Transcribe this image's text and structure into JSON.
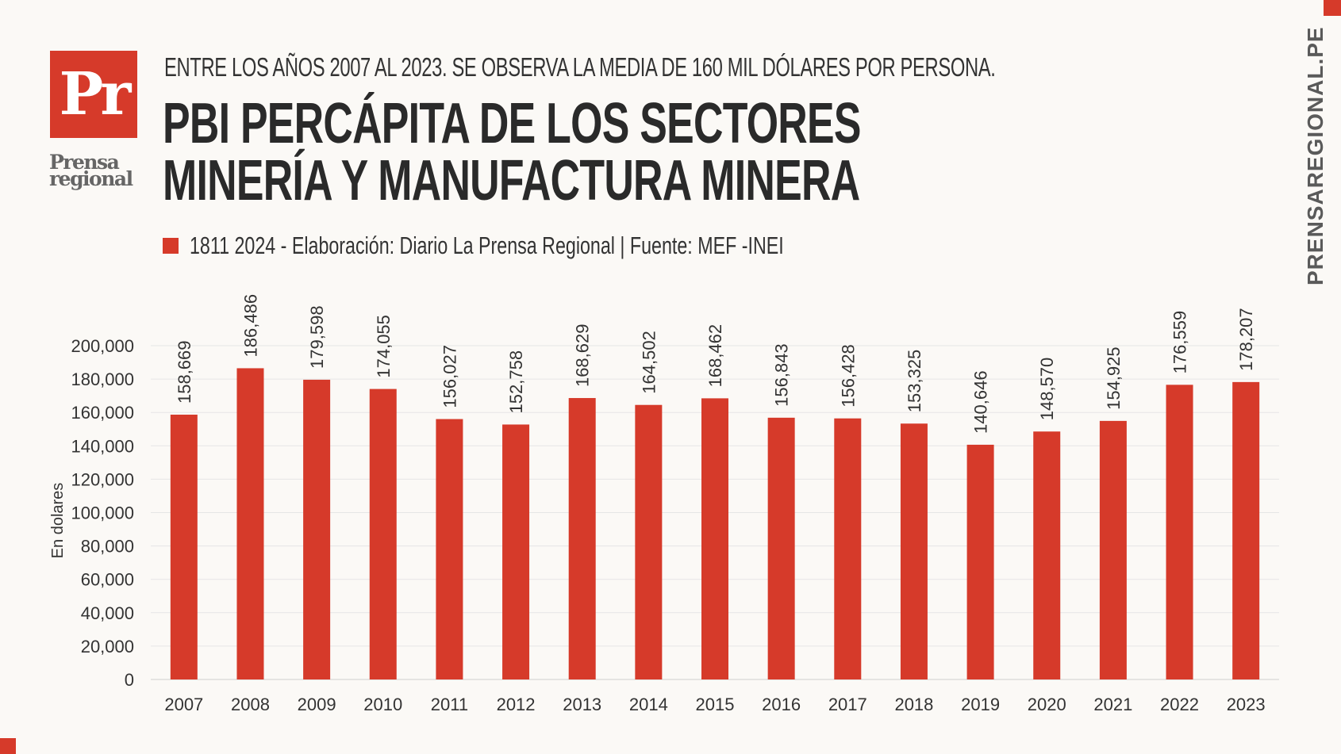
{
  "brand": {
    "logo_text": "Pr",
    "logo_word": "Prensa regional",
    "vertical_site": "PRENSAREGIONAL.PE",
    "accent_color": "#d63a2a"
  },
  "header": {
    "subtitle": "ENTRE LOS AÑOS 2007 AL 2023. SE OBSERVA LA MEDIA DE 160 MIL DÓLARES POR PERSONA.",
    "title_line1": "PBI PERCÁPITA DE LOS SECTORES",
    "title_line2": "MINERÍA Y MANUFACTURA MINERA"
  },
  "legend": {
    "text": "1811 2024 - Elaboración: Diario La Prensa Regional | Fuente: MEF -INEI"
  },
  "chart_data": {
    "type": "bar",
    "title": "PBI PERCÁPITA DE LOS SECTORES MINERÍA Y MANUFACTURA MINERA",
    "xlabel": "",
    "ylabel": "En dolares",
    "ylim": [
      0,
      200000
    ],
    "yticks": [
      "0",
      "20,000",
      "40,000",
      "60,000",
      "80,000",
      "100,000",
      "120,000",
      "140,000",
      "160,000",
      "180,000",
      "200,000"
    ],
    "ytick_values": [
      0,
      20000,
      40000,
      60000,
      80000,
      100000,
      120000,
      140000,
      160000,
      180000,
      200000
    ],
    "categories": [
      "2007",
      "2008",
      "2009",
      "2010",
      "2011",
      "2012",
      "2013",
      "2014",
      "2015",
      "2016",
      "2017",
      "2018",
      "2019",
      "2020",
      "2021",
      "2022",
      "2023"
    ],
    "values": [
      158669,
      186486,
      179598,
      174055,
      156027,
      152758,
      168629,
      164502,
      168462,
      156843,
      156428,
      153325,
      140646,
      148570,
      154925,
      176559,
      178207
    ],
    "value_labels": [
      "158,669",
      "186,486",
      "179,598",
      "174,055",
      "156,027",
      "152,758",
      "168,629",
      "164,502",
      "168,462",
      "156,843",
      "156,428",
      "153,325",
      "140,646",
      "148,570",
      "154,925",
      "176,559",
      "178,207"
    ],
    "bar_color": "#d63a2a",
    "grid": true
  }
}
